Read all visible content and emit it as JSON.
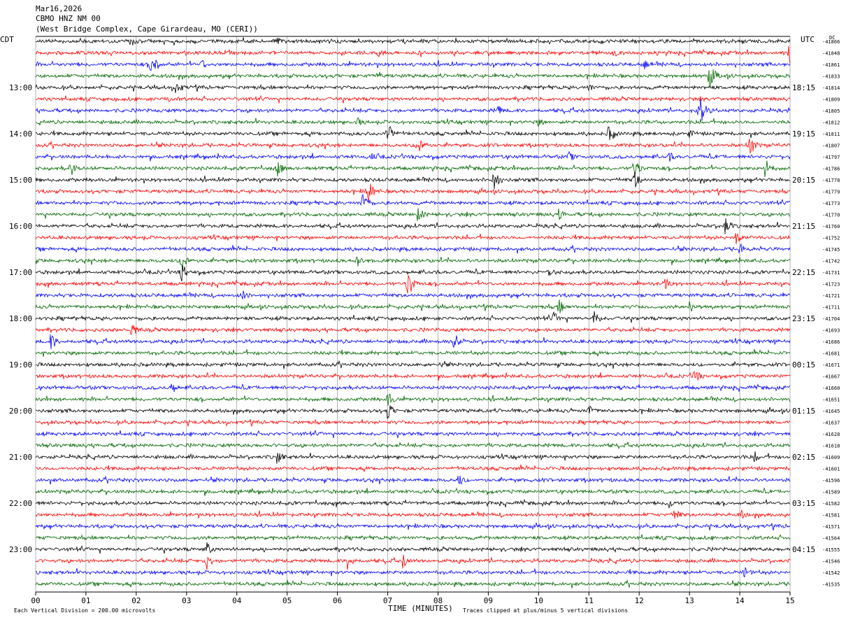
{
  "header": {
    "date": "Mar16,2026",
    "station": "CBMO HNZ NM 00",
    "location": "(West Bridge Complex, Cape Girardeau, MO (CERI))"
  },
  "left_zone_label": "CDT",
  "right_zone_label": "UTC",
  "dc_label": "DC",
  "footer": {
    "scale_note": "Each Vertical Division =  200.00 microvolts",
    "clip_note": "Traces clipped at plus/minus 5 vertical divisions"
  },
  "colors": {
    "trace_cycle": [
      "#000000",
      "#ff0000",
      "#0000ff",
      "#006400"
    ],
    "gridline": "#808080"
  },
  "chart_data": {
    "type": "line",
    "title": "",
    "xlabel": "TIME (MINUTES)",
    "ylabel": "",
    "xlim": [
      0,
      15
    ],
    "x_ticks": [
      "00",
      "01",
      "02",
      "03",
      "04",
      "05",
      "06",
      "07",
      "08",
      "09",
      "10",
      "11",
      "12",
      "13",
      "14",
      "15"
    ],
    "left_time_labels": [
      {
        "row": 4,
        "label": "13:00"
      },
      {
        "row": 8,
        "label": "14:00"
      },
      {
        "row": 12,
        "label": "15:00"
      },
      {
        "row": 16,
        "label": "16:00"
      },
      {
        "row": 20,
        "label": "17:00"
      },
      {
        "row": 24,
        "label": "18:00"
      },
      {
        "row": 28,
        "label": "19:00"
      },
      {
        "row": 32,
        "label": "20:00"
      },
      {
        "row": 36,
        "label": "21:00"
      },
      {
        "row": 40,
        "label": "22:00"
      },
      {
        "row": 44,
        "label": "23:00"
      }
    ],
    "right_time_labels": [
      {
        "row": 4,
        "label": "18:15"
      },
      {
        "row": 8,
        "label": "19:15"
      },
      {
        "row": 12,
        "label": "20:15"
      },
      {
        "row": 16,
        "label": "21:15"
      },
      {
        "row": 20,
        "label": "22:15"
      },
      {
        "row": 24,
        "label": "23:15"
      },
      {
        "row": 28,
        "label": "00:15"
      },
      {
        "row": 32,
        "label": "01:15"
      },
      {
        "row": 36,
        "label": "02:15"
      },
      {
        "row": 40,
        "label": "03:15"
      },
      {
        "row": 44,
        "label": "04:15"
      }
    ],
    "dc_offsets": [
      "-41866",
      "-41848",
      "-41861",
      "-41833",
      "-41814",
      "-41809",
      "-41805",
      "-41812",
      "-41811",
      "-41807",
      "-41797",
      "-41786",
      "-41778",
      "-41779",
      "-41773",
      "-41770",
      "-41760",
      "-41752",
      "-41745",
      "-41742",
      "-41731",
      "-41723",
      "-41721",
      "-41711",
      "-41704",
      "-41693",
      "-41686",
      "-41681",
      "-41671",
      "-41667",
      "-41660",
      "-41651",
      "-41645",
      "-41637",
      "-41628",
      "-41618",
      "-41609",
      "-41601",
      "-41596",
      "-41589",
      "-41582",
      "-41581",
      "-41571",
      "-41564",
      "-41555",
      "-41546",
      "-41542",
      "-41535"
    ],
    "noise_amplitude": 3,
    "events": [
      {
        "row": 0,
        "minute": 1.9,
        "amp": 10
      },
      {
        "row": 0,
        "minute": 4.8,
        "amp": 7
      },
      {
        "row": 1,
        "minute": 6.8,
        "amp": 8
      },
      {
        "row": 1,
        "minute": 11.5,
        "amp": 8
      },
      {
        "row": 1,
        "minute": 15.0,
        "amp": 30
      },
      {
        "row": 2,
        "minute": 2.3,
        "amp": 22
      },
      {
        "row": 2,
        "minute": 3.3,
        "amp": 8
      },
      {
        "row": 2,
        "minute": 12.1,
        "amp": 8
      },
      {
        "row": 3,
        "minute": 6.8,
        "amp": 8
      },
      {
        "row": 3,
        "minute": 13.4,
        "amp": 20
      },
      {
        "row": 4,
        "minute": 2.8,
        "amp": 14
      },
      {
        "row": 4,
        "minute": 11.0,
        "amp": 7
      },
      {
        "row": 5,
        "minute": 2.6,
        "amp": 8
      },
      {
        "row": 6,
        "minute": 9.2,
        "amp": 8
      },
      {
        "row": 6,
        "minute": 13.2,
        "amp": 25
      },
      {
        "row": 7,
        "minute": 6.4,
        "amp": 8
      },
      {
        "row": 7,
        "minute": 10.0,
        "amp": 8
      },
      {
        "row": 8,
        "minute": 7.0,
        "amp": 18
      },
      {
        "row": 8,
        "minute": 11.4,
        "amp": 16
      },
      {
        "row": 8,
        "minute": 13.0,
        "amp": 8
      },
      {
        "row": 9,
        "minute": 7.6,
        "amp": 18
      },
      {
        "row": 9,
        "minute": 14.2,
        "amp": 16
      },
      {
        "row": 10,
        "minute": 6.7,
        "amp": 9
      },
      {
        "row": 10,
        "minute": 10.6,
        "amp": 9
      },
      {
        "row": 10,
        "minute": 12.6,
        "amp": 8
      },
      {
        "row": 11,
        "minute": 0.7,
        "amp": 12
      },
      {
        "row": 11,
        "minute": 4.8,
        "amp": 14
      },
      {
        "row": 11,
        "minute": 11.9,
        "amp": 16
      },
      {
        "row": 11,
        "minute": 14.5,
        "amp": 16
      },
      {
        "row": 12,
        "minute": 9.1,
        "amp": 16
      },
      {
        "row": 12,
        "minute": 11.9,
        "amp": 14
      },
      {
        "row": 13,
        "minute": 6.6,
        "amp": 22
      },
      {
        "row": 14,
        "minute": 6.5,
        "amp": 16
      },
      {
        "row": 15,
        "minute": 7.6,
        "amp": 12
      },
      {
        "row": 15,
        "minute": 10.4,
        "amp": 10
      },
      {
        "row": 16,
        "minute": 13.7,
        "amp": 14
      },
      {
        "row": 17,
        "minute": 13.9,
        "amp": 14
      },
      {
        "row": 18,
        "minute": 14.0,
        "amp": 10
      },
      {
        "row": 19,
        "minute": 2.9,
        "amp": 18
      },
      {
        "row": 19,
        "minute": 6.4,
        "amp": 12
      },
      {
        "row": 20,
        "minute": 2.9,
        "amp": 14
      },
      {
        "row": 20,
        "minute": 10.2,
        "amp": 10
      },
      {
        "row": 21,
        "minute": 7.4,
        "amp": 22
      },
      {
        "row": 21,
        "minute": 12.5,
        "amp": 12
      },
      {
        "row": 22,
        "minute": 4.1,
        "amp": 10
      },
      {
        "row": 23,
        "minute": 10.4,
        "amp": 12
      },
      {
        "row": 23,
        "minute": 13.0,
        "amp": 10
      },
      {
        "row": 24,
        "minute": 10.3,
        "amp": 10
      },
      {
        "row": 24,
        "minute": 11.1,
        "amp": 12
      },
      {
        "row": 25,
        "minute": 1.9,
        "amp": 12
      },
      {
        "row": 26,
        "minute": 0.3,
        "amp": 14
      },
      {
        "row": 26,
        "minute": 8.3,
        "amp": 18
      },
      {
        "row": 28,
        "minute": 8.1,
        "amp": 8
      },
      {
        "row": 29,
        "minute": 13.1,
        "amp": 12
      },
      {
        "row": 30,
        "minute": 2.7,
        "amp": 10
      },
      {
        "row": 31,
        "minute": 7.0,
        "amp": 12
      },
      {
        "row": 32,
        "minute": 7.0,
        "amp": 14
      },
      {
        "row": 32,
        "minute": 11.0,
        "amp": 10
      },
      {
        "row": 36,
        "minute": 4.8,
        "amp": 12
      },
      {
        "row": 36,
        "minute": 14.3,
        "amp": 10
      },
      {
        "row": 38,
        "minute": 8.4,
        "amp": 12
      },
      {
        "row": 40,
        "minute": 12.6,
        "amp": 10
      },
      {
        "row": 41,
        "minute": 12.7,
        "amp": 12
      },
      {
        "row": 41,
        "minute": 14.0,
        "amp": 10
      },
      {
        "row": 44,
        "minute": 3.4,
        "amp": 12
      },
      {
        "row": 45,
        "minute": 3.4,
        "amp": 14
      },
      {
        "row": 45,
        "minute": 6.2,
        "amp": 14
      },
      {
        "row": 45,
        "minute": 7.3,
        "amp": 12
      },
      {
        "row": 46,
        "minute": 14.1,
        "amp": 10
      }
    ]
  }
}
